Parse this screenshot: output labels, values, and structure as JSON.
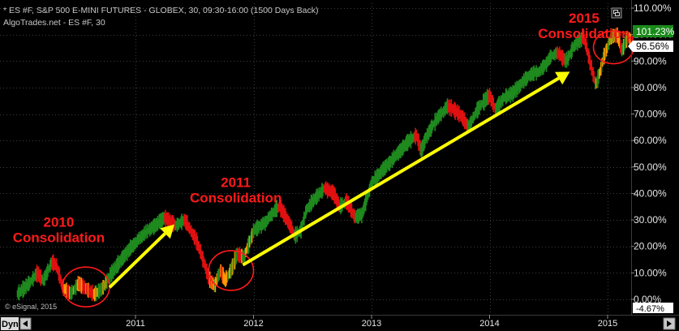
{
  "header": {
    "line1": "* ES #F, S&P 500 E-MINI FUTURES - GLOBEX, 30, 09:30-16:00 (1500 Days Back)",
    "line2": "AlgoTrades.net - ES #F, 30"
  },
  "watermark": "© eSignal, 2015",
  "toolbar": {
    "dyn_label": "Dyn"
  },
  "colors": {
    "background": "#000000",
    "up": "#1f8a1f",
    "down": "#e01010",
    "highlight": "#ff9a00",
    "arrow": "#ffff00",
    "annotation": "#ff1a1a",
    "price_box_green": "#1a8a1a"
  },
  "price_labels": {
    "high": "101.23%",
    "current": "96.56%",
    "low": "-4.67%"
  },
  "chart_data": {
    "type": "line",
    "x_unit": "year",
    "xlim": [
      2010.0,
      2015.25
    ],
    "ylim": [
      -0.046,
      1.1
    ],
    "y_format": "percent",
    "x_ticks": [
      {
        "label": "2011",
        "value": 2011.0
      },
      {
        "label": "2012",
        "value": 2012.0
      },
      {
        "label": "2013",
        "value": 2013.0
      },
      {
        "label": "2014",
        "value": 2014.0
      },
      {
        "label": "2015",
        "value": 2015.0
      }
    ],
    "y_ticks": [
      {
        "label": "0.00%",
        "value": 0.0
      },
      {
        "label": "10.00%",
        "value": 0.1
      },
      {
        "label": "20.00%",
        "value": 0.2
      },
      {
        "label": "30.00%",
        "value": 0.3
      },
      {
        "label": "40.00%",
        "value": 0.4
      },
      {
        "label": "50.00%",
        "value": 0.5
      },
      {
        "label": "60.00%",
        "value": 0.6
      },
      {
        "label": "70.00%",
        "value": 0.7
      },
      {
        "label": "80.00%",
        "value": 0.8
      },
      {
        "label": "90.00%",
        "value": 0.9
      },
      {
        "label": "100.00%",
        "value": 1.0
      },
      {
        "label": "110.00%",
        "value": 1.1
      }
    ],
    "series": [
      {
        "x": [
          2010.0,
          2010.1,
          2010.17,
          2010.22,
          2010.29,
          2010.33,
          2010.38,
          2010.45,
          2010.52,
          2010.58,
          2010.65,
          2010.72,
          2010.8,
          2010.88,
          2010.97,
          2011.08,
          2011.17,
          2011.25,
          2011.34,
          2011.42,
          2011.48,
          2011.52,
          2011.58,
          2011.62,
          2011.67,
          2011.72,
          2011.76,
          2011.82,
          2011.86,
          2011.92,
          2012.0,
          2012.1,
          2012.17,
          2012.22,
          2012.29,
          2012.35,
          2012.4,
          2012.45,
          2012.52,
          2012.6,
          2012.68,
          2012.73,
          2012.79,
          2012.86,
          2012.92,
          2013.0,
          2013.1,
          2013.2,
          2013.3,
          2013.38,
          2013.42,
          2013.46,
          2013.55,
          2013.65,
          2013.75,
          2013.82,
          2013.9,
          2014.0,
          2014.05,
          2014.12,
          2014.2,
          2014.28,
          2014.35,
          2014.42,
          2014.48,
          2014.52,
          2014.58,
          2014.65,
          2014.72,
          2014.8,
          2014.86,
          2014.9,
          2014.93,
          2014.97,
          2015.03,
          2015.08,
          2015.12,
          2015.17,
          2015.22
        ],
        "y": [
          0.02,
          0.06,
          0.1,
          0.07,
          0.14,
          0.13,
          0.05,
          0.02,
          0.06,
          0.04,
          0.02,
          0.04,
          0.1,
          0.15,
          0.2,
          0.25,
          0.28,
          0.31,
          0.28,
          0.3,
          0.25,
          0.22,
          0.14,
          0.08,
          0.05,
          0.11,
          0.07,
          0.12,
          0.17,
          0.16,
          0.26,
          0.29,
          0.33,
          0.35,
          0.3,
          0.24,
          0.26,
          0.34,
          0.38,
          0.42,
          0.4,
          0.35,
          0.37,
          0.31,
          0.32,
          0.44,
          0.49,
          0.54,
          0.59,
          0.62,
          0.56,
          0.61,
          0.68,
          0.73,
          0.7,
          0.65,
          0.72,
          0.77,
          0.72,
          0.76,
          0.78,
          0.82,
          0.85,
          0.86,
          0.89,
          0.92,
          0.93,
          0.9,
          0.96,
          0.99,
          0.88,
          0.81,
          0.85,
          0.92,
          0.99,
          1.0,
          0.94,
          0.99,
          0.97
        ]
      }
    ],
    "annotations": [
      {
        "line1": "2010",
        "line2": "Consolidation",
        "x": 2010.35,
        "y": 0.275
      },
      {
        "line1": "2011",
        "line2": "Consolidation",
        "x": 2011.85,
        "y": 0.425
      },
      {
        "line1": "2015",
        "line2": "Consolidation",
        "x": 2014.8,
        "y": 1.045
      }
    ],
    "consolidation_zones": [
      {
        "x_center": 2010.58,
        "y_center": 0.047,
        "x_radius": 0.2,
        "y_radius": 0.075
      },
      {
        "x_center": 2011.81,
        "y_center": 0.109,
        "x_radius": 0.19,
        "y_radius": 0.075
      },
      {
        "x_center": 2015.05,
        "y_center": 0.952,
        "x_radius": 0.17,
        "y_radius": 0.062
      }
    ],
    "trend_arrows": [
      {
        "x1": 2010.78,
        "y1": 0.045,
        "x2": 2011.33,
        "y2": 0.283
      },
      {
        "x1": 2011.91,
        "y1": 0.13,
        "x2": 2014.68,
        "y2": 0.86
      }
    ]
  }
}
